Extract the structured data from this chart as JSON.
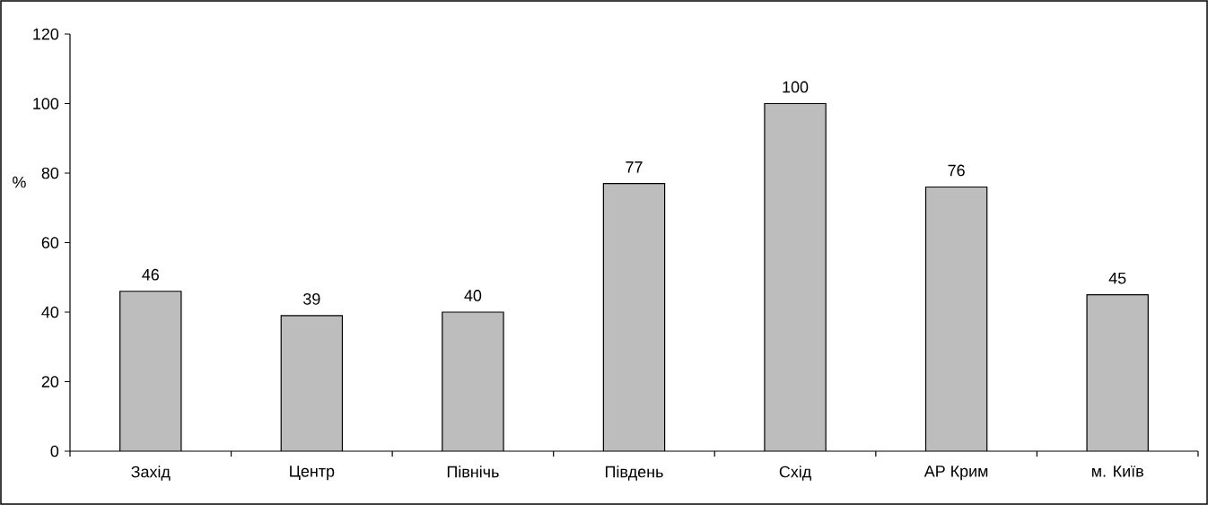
{
  "chart_data": {
    "type": "bar",
    "ylabel": "%",
    "categories": [
      "Захід",
      "Центр",
      "Північь",
      "Південь",
      "Схід",
      "АР Крим",
      "м. Київ"
    ],
    "values": [
      46,
      39,
      40,
      77,
      100,
      76,
      45
    ],
    "color": "#bdbdbd",
    "ylim": [
      0,
      120
    ],
    "yticks": [
      0,
      20,
      40,
      60,
      80,
      100,
      120
    ],
    "data_labels": true
  }
}
